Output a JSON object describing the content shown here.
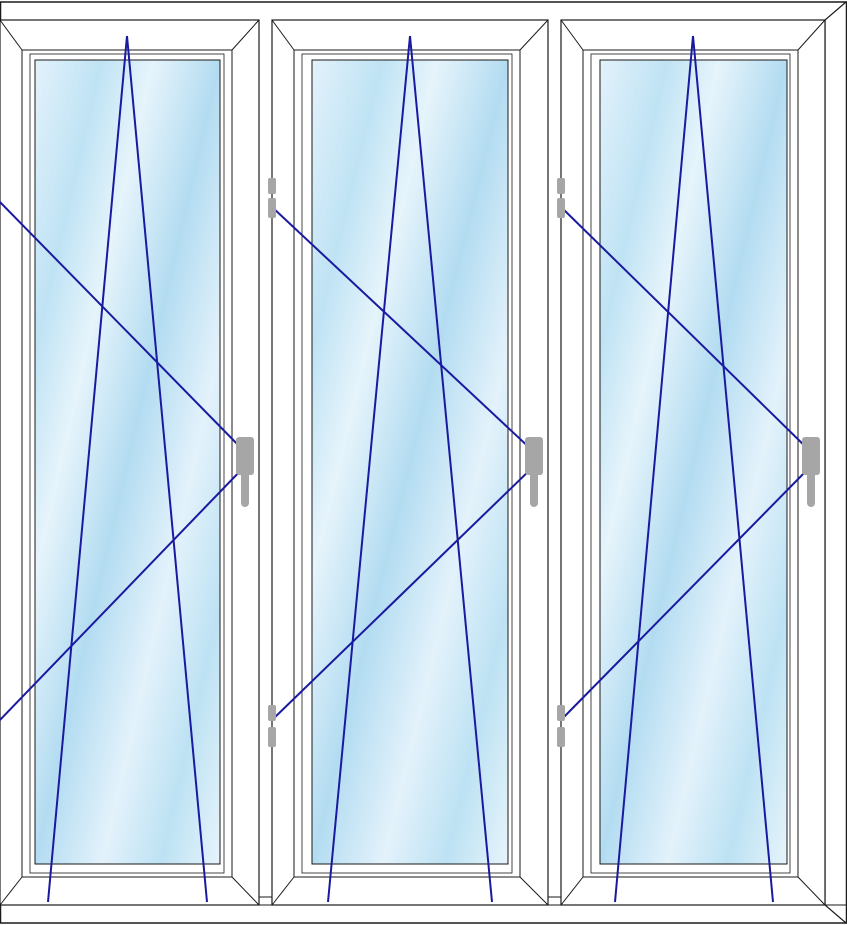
{
  "diagram": {
    "kind": "pvc-window-elevation",
    "sash_count": 3,
    "colors": {
      "frame_stroke": "#1a1a1a",
      "frame_fill": "#ffffff",
      "glass_light": "#e3f2fb",
      "glass_mid": "#b7def2",
      "opening_lines": "#1a1aa0",
      "hardware": "#a6a6a6"
    },
    "sashes": [
      {
        "id": "left",
        "opening": "tilt-and-turn",
        "hinge_side": "left",
        "handle_side": "right"
      },
      {
        "id": "middle",
        "opening": "tilt-and-turn",
        "hinge_side": "left",
        "handle_side": "right"
      },
      {
        "id": "right",
        "opening": "tilt-and-turn",
        "hinge_side": "left",
        "handle_side": "right"
      }
    ],
    "icons": {
      "handle": "window-handle-icon",
      "hinge": "hinge-icon"
    }
  }
}
